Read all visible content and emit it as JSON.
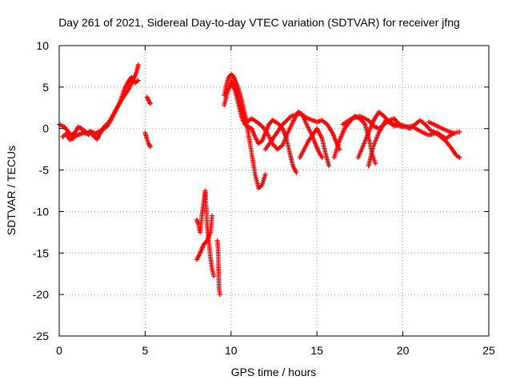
{
  "chart_data": {
    "type": "scatter",
    "title": "Day 261 of 2021, Sidereal Day-to-day VTEC variation (SDTVAR) for receiver jfng",
    "xlabel": "GPS time / hours",
    "ylabel": "SDTVAR / TECUs",
    "xlim": [
      0,
      25
    ],
    "ylim": [
      -25,
      10
    ],
    "xticks": [
      0,
      5,
      10,
      15,
      20,
      25
    ],
    "yticks": [
      -25,
      -20,
      -15,
      -10,
      -5,
      0,
      5,
      10
    ],
    "grid": true,
    "marker": "+",
    "series": [
      {
        "name": "SDTVAR",
        "color": "#ff0000",
        "segments": [
          [
            [
              0.0,
              0.5
            ],
            [
              0.3,
              0.2
            ],
            [
              0.5,
              -0.3
            ],
            [
              0.7,
              -0.8
            ],
            [
              0.9,
              -0.5
            ],
            [
              1.1,
              0.2
            ],
            [
              1.3,
              0.0
            ],
            [
              1.5,
              -0.3
            ],
            [
              1.7,
              -0.7
            ],
            [
              1.9,
              -0.4
            ],
            [
              2.1,
              -0.6
            ],
            [
              2.3,
              -0.4
            ],
            [
              2.5,
              -0.1
            ],
            [
              2.7,
              0.4
            ],
            [
              2.9,
              0.8
            ],
            [
              3.1,
              1.5
            ],
            [
              3.3,
              2.3
            ],
            [
              3.5,
              3.0
            ],
            [
              3.7,
              3.7
            ],
            [
              3.9,
              4.3
            ],
            [
              4.1,
              5.0
            ],
            [
              4.3,
              5.8
            ],
            [
              4.5,
              6.8
            ],
            [
              4.6,
              7.7
            ]
          ],
          [
            [
              0.2,
              -1.0
            ],
            [
              0.4,
              -0.6
            ],
            [
              0.6,
              -1.3
            ],
            [
              0.8,
              -1.2
            ],
            [
              1.0,
              -0.8
            ],
            [
              1.2,
              -0.7
            ],
            [
              1.4,
              -0.5
            ],
            [
              1.6,
              -0.6
            ],
            [
              1.8,
              -0.3
            ],
            [
              2.0,
              -0.9
            ],
            [
              2.2,
              -1.3
            ],
            [
              2.4,
              -0.5
            ],
            [
              2.6,
              0.0
            ],
            [
              2.8,
              0.3
            ],
            [
              3.0,
              1.0
            ],
            [
              3.2,
              1.8
            ],
            [
              3.4,
              2.6
            ],
            [
              3.6,
              3.5
            ],
            [
              3.8,
              4.8
            ],
            [
              4.0,
              5.6
            ],
            [
              4.2,
              6.2
            ],
            [
              4.4,
              5.5
            ],
            [
              4.6,
              5.8
            ]
          ],
          [
            [
              5.1,
              3.8
            ],
            [
              5.2,
              3.4
            ],
            [
              5.3,
              3.0
            ]
          ],
          [
            [
              5.0,
              -0.5
            ],
            [
              5.1,
              -1.2
            ],
            [
              5.2,
              -1.8
            ],
            [
              5.3,
              -2.2
            ]
          ],
          [
            [
              8.0,
              -11.0
            ],
            [
              8.1,
              -11.5
            ],
            [
              8.2,
              -12.5
            ],
            [
              8.3,
              -10.5
            ],
            [
              8.4,
              -9.0
            ],
            [
              8.5,
              -7.5
            ],
            [
              8.6,
              -11.5
            ],
            [
              8.7,
              -13.5
            ],
            [
              8.8,
              -15.5
            ],
            [
              8.9,
              -17.0
            ],
            [
              9.0,
              -17.8
            ]
          ],
          [
            [
              8.0,
              -15.8
            ],
            [
              8.2,
              -15.0
            ],
            [
              8.4,
              -14.0
            ],
            [
              8.6,
              -13.5
            ],
            [
              8.8,
              -12.5
            ],
            [
              8.9,
              -10.5
            ]
          ],
          [
            [
              9.2,
              -13.5
            ],
            [
              9.25,
              -14.5
            ],
            [
              9.3,
              -19.2
            ],
            [
              9.35,
              -20.0
            ]
          ],
          [
            [
              9.6,
              4.0
            ],
            [
              9.7,
              5.0
            ],
            [
              9.8,
              5.8
            ],
            [
              9.9,
              6.3
            ],
            [
              10.0,
              6.5
            ],
            [
              10.1,
              6.4
            ],
            [
              10.2,
              6.0
            ],
            [
              10.4,
              5.0
            ],
            [
              10.6,
              3.5
            ],
            [
              10.8,
              1.8
            ],
            [
              11.0,
              -0.5
            ],
            [
              11.2,
              -3.0
            ],
            [
              11.4,
              -5.5
            ],
            [
              11.6,
              -7.2
            ],
            [
              11.8,
              -6.8
            ],
            [
              12.0,
              -5.5
            ]
          ],
          [
            [
              9.6,
              2.8
            ],
            [
              9.8,
              4.5
            ],
            [
              10.0,
              5.5
            ],
            [
              10.2,
              4.8
            ],
            [
              10.4,
              3.2
            ],
            [
              10.6,
              1.5
            ],
            [
              10.8,
              0.5
            ],
            [
              11.0,
              0.2
            ],
            [
              11.2,
              0.0
            ],
            [
              11.4,
              -1.0
            ],
            [
              11.6,
              -1.8
            ],
            [
              11.8,
              -1.5
            ],
            [
              12.0,
              -0.5
            ],
            [
              12.2,
              0.5
            ],
            [
              12.4,
              1.0
            ],
            [
              12.6,
              0.8
            ],
            [
              12.8,
              0.5
            ],
            [
              13.0,
              0.0
            ],
            [
              13.2,
              -1.0
            ],
            [
              13.4,
              -2.8
            ],
            [
              13.6,
              -4.5
            ],
            [
              13.8,
              -5.3
            ]
          ],
          [
            [
              10.0,
              5.8
            ],
            [
              10.3,
              4.5
            ],
            [
              10.6,
              2.5
            ],
            [
              10.9,
              0.8
            ],
            [
              11.2,
              1.2
            ],
            [
              11.5,
              0.8
            ],
            [
              11.8,
              0.3
            ],
            [
              12.1,
              -0.5
            ],
            [
              12.4,
              -1.8
            ],
            [
              12.7,
              -2.5
            ],
            [
              13.0,
              -2.0
            ],
            [
              13.3,
              -0.5
            ],
            [
              13.6,
              0.8
            ],
            [
              13.9,
              2.0
            ],
            [
              14.1,
              1.8
            ],
            [
              14.4,
              0.5
            ],
            [
              14.7,
              -0.8
            ],
            [
              14.9,
              -1.8
            ],
            [
              15.1,
              -2.8
            ],
            [
              15.3,
              -3.5
            ]
          ],
          [
            [
              12.0,
              -2.5
            ],
            [
              12.5,
              -1.0
            ],
            [
              13.0,
              0.5
            ],
            [
              13.5,
              1.5
            ],
            [
              14.0,
              1.8
            ],
            [
              14.5,
              1.2
            ],
            [
              15.0,
              0.8
            ],
            [
              15.3,
              1.0
            ],
            [
              15.6,
              0.5
            ],
            [
              15.9,
              -0.5
            ],
            [
              16.1,
              -1.5
            ],
            [
              16.3,
              -2.5
            ]
          ],
          [
            [
              14.0,
              -3.5
            ],
            [
              14.5,
              -1.5
            ],
            [
              15.0,
              0.0
            ],
            [
              15.3,
              -1.2
            ],
            [
              15.5,
              -3.0
            ],
            [
              15.7,
              -4.5
            ]
          ],
          [
            [
              16.0,
              -3.5
            ],
            [
              16.3,
              -1.5
            ],
            [
              16.6,
              0.0
            ],
            [
              16.9,
              0.8
            ],
            [
              17.2,
              1.5
            ],
            [
              17.5,
              1.2
            ],
            [
              17.8,
              0.5
            ],
            [
              18.0,
              -1.0
            ],
            [
              18.2,
              -3.0
            ],
            [
              18.4,
              -4.2
            ]
          ],
          [
            [
              16.5,
              0.5
            ],
            [
              17.0,
              1.2
            ],
            [
              17.5,
              1.5
            ],
            [
              18.0,
              1.0
            ],
            [
              18.3,
              0.3
            ],
            [
              18.6,
              0.0
            ],
            [
              18.9,
              0.5
            ],
            [
              19.2,
              1.0
            ],
            [
              19.5,
              1.2
            ],
            [
              19.8,
              0.5
            ],
            [
              20.0,
              0.2
            ]
          ],
          [
            [
              17.4,
              -3.5
            ],
            [
              17.7,
              -2.0
            ],
            [
              18.0,
              -0.5
            ],
            [
              18.3,
              1.0
            ],
            [
              18.6,
              2.0
            ],
            [
              18.9,
              1.5
            ],
            [
              19.2,
              0.8
            ],
            [
              19.5,
              0.3
            ],
            [
              19.8,
              0.5
            ],
            [
              20.1,
              0.3
            ],
            [
              20.4,
              0.0
            ],
            [
              20.7,
              0.5
            ],
            [
              21.0,
              1.0
            ],
            [
              21.3,
              0.5
            ],
            [
              21.6,
              -0.2
            ],
            [
              21.9,
              -0.5
            ],
            [
              22.2,
              -1.0
            ],
            [
              22.5,
              -1.5
            ],
            [
              22.8,
              -2.3
            ],
            [
              23.1,
              -3.2
            ],
            [
              23.3,
              -3.5
            ]
          ],
          [
            [
              18.0,
              -4.5
            ],
            [
              18.3,
              -2.0
            ],
            [
              18.6,
              -0.5
            ],
            [
              19.0,
              1.0
            ],
            [
              19.5,
              0.5
            ],
            [
              20.0,
              0.2
            ],
            [
              20.5,
              0.3
            ],
            [
              21.0,
              -0.3
            ],
            [
              21.5,
              -0.8
            ],
            [
              22.0,
              -0.5
            ],
            [
              22.5,
              -1.2
            ],
            [
              23.0,
              -0.5
            ],
            [
              23.3,
              -0.4
            ]
          ],
          [
            [
              21.5,
              0.8
            ],
            [
              22.0,
              0.3
            ],
            [
              22.5,
              -0.2
            ],
            [
              23.0,
              -0.6
            ]
          ]
        ]
      }
    ]
  }
}
